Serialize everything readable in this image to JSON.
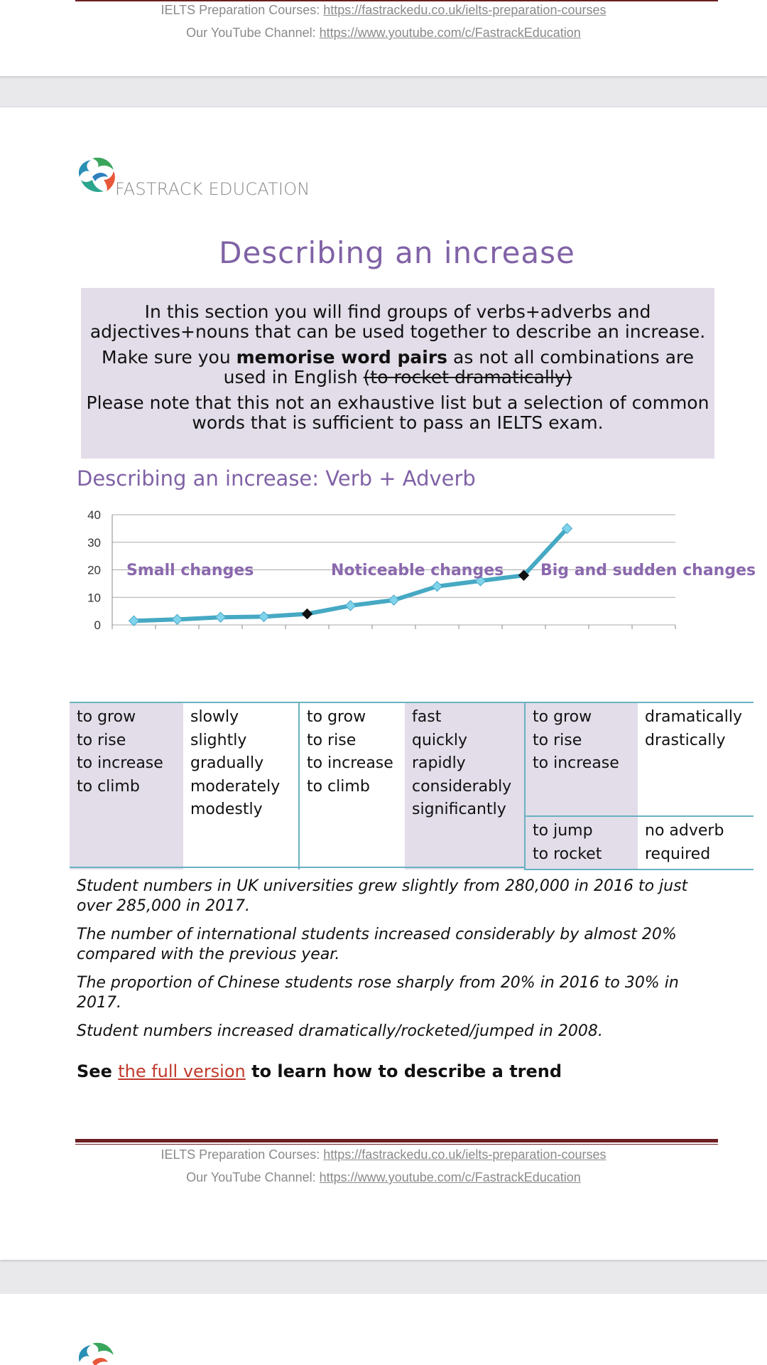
{
  "header_footer": {
    "courses_label": "IELTS Preparation Courses: ",
    "courses_url": "https://fastrackedu.co.uk/ielts-preparation-courses",
    "youtube_label": "Our YouTube Channel: ",
    "youtube_url": "https://www.youtube.com/c/FastrackEducation"
  },
  "logo": {
    "text": "FASTRACK EDUCATION"
  },
  "title": "Describing an increase",
  "intro": {
    "p1": "In this section you will find groups of verbs+adverbs and adjectives+nouns that can be used together to describe an increase.",
    "p2_pre": "Make sure you ",
    "p2_bold": "memorise word pairs",
    "p2_post": " as not all combinations are used in English ",
    "p2_strike": "(to rocket dramatically)",
    "p3": "Please note that this not an exhaustive list but a selection of common words that is sufficient to pass an IELTS exam."
  },
  "section_title": "Describing an increase: Verb + Adverb",
  "chart_data": {
    "type": "line",
    "y_ticks": [
      "40",
      "30",
      "20",
      "10",
      "0"
    ],
    "ylim": [
      0,
      40
    ],
    "series": [
      {
        "values": [
          1.5,
          2,
          2.8,
          3,
          4,
          7,
          9,
          14,
          16,
          18,
          35
        ]
      }
    ],
    "highlighted_points": [
      4,
      9
    ],
    "grid": true,
    "categories_groups": [
      "Small changes",
      "Noticeable changes",
      "Big and sudden changes"
    ]
  },
  "table": {
    "small": {
      "verbs": [
        "to grow",
        "to rise",
        "to increase",
        "to climb"
      ],
      "adverbs": [
        "slowly",
        "slightly",
        "gradually",
        "moderately",
        "modestly"
      ]
    },
    "noticeable": {
      "verbs": [
        "to grow",
        "to rise",
        "to increase",
        "to climb"
      ],
      "adverbs": [
        "fast",
        "quickly",
        "rapidly",
        "considerably",
        "significantly"
      ]
    },
    "big": {
      "verbs": [
        "to grow",
        "to rise",
        "to increase"
      ],
      "adverbs": [
        "dramatically",
        "drastically"
      ],
      "verbs2": [
        "to jump",
        "to rocket"
      ],
      "adverbs2": [
        "no adverb",
        "required"
      ]
    }
  },
  "examples": [
    "Student numbers in UK universities grew slightly from 280,000 in 2016 to just over 285,000 in 2017.",
    "The number of international students increased considerably by almost 20% compared with the previous year.",
    "The proportion of Chinese students rose sharply from 20% in 2016 to 30% in 2017.",
    "Student numbers increased dramatically/rocketed/jumped in 2008."
  ],
  "see": {
    "pre": "See ",
    "link": "the full version",
    "post": " to learn how to describe a trend"
  },
  "colors": {
    "accent_purple": "#8062a6",
    "box_bg": "#e2dde9",
    "line": "#46a9c4",
    "rule": "#6b1f22"
  }
}
